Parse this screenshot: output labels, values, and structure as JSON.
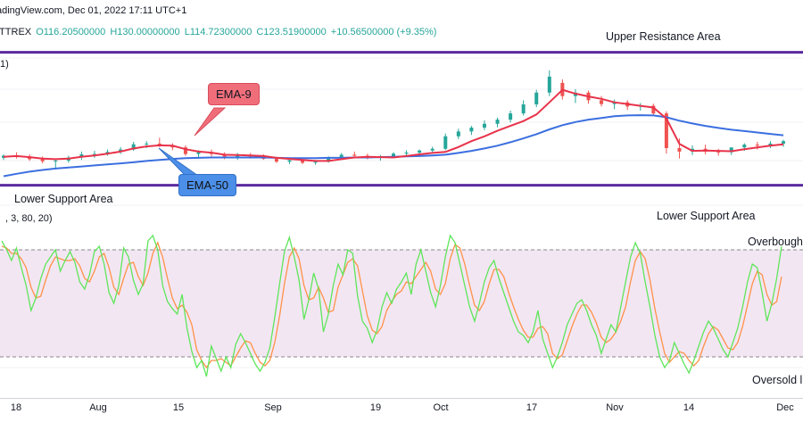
{
  "header": {
    "line1": "adingView.com, Dec 01, 2022 17:11 UTC+1",
    "exchange": "ITTREX",
    "open": "O116.20500000",
    "high": "H130.00000000",
    "low": "L114.72300000",
    "close": "C123.51900000",
    "change": "+10.56500000 (+9.35%)"
  },
  "indicator_main_label": "1)",
  "indicator_osc_label": ", 3, 80, 20)",
  "zones": {
    "upper_resistance": "Upper Resistance Area",
    "lower_support_left": "Lower Support Area",
    "lower_support_right": "Lower Support Area"
  },
  "callouts": {
    "ema9": "EMA-9",
    "ema50": "EMA-50"
  },
  "osc_labels": {
    "overbought": "Overbought",
    "oversold": "Oversold l"
  },
  "colors": {
    "up": "#26a69a",
    "down": "#ef5350",
    "ema9": "#e8334a",
    "ema50": "#3b6fe0",
    "zone_line": "#5b2a9e",
    "stoch_k": "#5ee65a",
    "stoch_d": "#ff9248",
    "band": "#f3e6f3"
  },
  "chart_data": [
    {
      "type": "candlestick",
      "x_ticks": [
        "18",
        "Aug",
        "15",
        "Sep",
        "19",
        "Oct",
        "17",
        "Nov",
        "14",
        "Dec"
      ],
      "ylim": [
        95,
        140
      ],
      "ema9": [
        105.1,
        105.3,
        105.0,
        104.6,
        104.4,
        104.6,
        105.1,
        105.5,
        106.0,
        106.6,
        107.5,
        108.1,
        108.4,
        108.3,
        107.3,
        106.6,
        106.3,
        105.7,
        105.6,
        105.5,
        105.3,
        104.8,
        104.5,
        104.2,
        103.9,
        103.9,
        104.4,
        104.9,
        105.1,
        105.0,
        104.9,
        105.3,
        105.8,
        106.2,
        106.5,
        107.9,
        109.6,
        111.0,
        112.6,
        114.0,
        115.4,
        117.3,
        120.8,
        124.4,
        123.3,
        122.5,
        121.8,
        120.8,
        120.3,
        119.8,
        119.3,
        116.1,
        108.8,
        106.8,
        106.9,
        106.8,
        106.7,
        107.3,
        107.8,
        108.3,
        108.7
      ],
      "ema50": [
        99.5,
        100.2,
        100.8,
        101.3,
        101.7,
        102.0,
        102.3,
        102.6,
        102.9,
        103.2,
        103.5,
        103.9,
        104.2,
        104.5,
        104.7,
        104.8,
        104.9,
        104.9,
        104.9,
        104.9,
        104.9,
        104.8,
        104.7,
        104.7,
        104.7,
        104.8,
        104.8,
        104.9,
        104.9,
        105.0,
        105.1,
        105.2,
        105.3,
        105.5,
        105.7,
        106.2,
        106.8,
        107.5,
        108.3,
        109.3,
        110.4,
        111.6,
        113.0,
        114.2,
        115.1,
        115.8,
        116.3,
        116.8,
        117.0,
        117.1,
        117.0,
        116.5,
        115.5,
        114.7,
        114.0,
        113.4,
        112.9,
        112.5,
        112.1,
        111.7,
        111.3
      ],
      "upper_resistance": 135.2,
      "lower_support": 96.9,
      "candles": [
        [
          104.8,
          105.8,
          104.2,
          105.4
        ],
        [
          105.4,
          106.4,
          104.6,
          105.0
        ],
        [
          105.0,
          105.8,
          103.9,
          104.4
        ],
        [
          104.4,
          105.2,
          103.2,
          103.8
        ],
        [
          103.8,
          104.6,
          101.5,
          104.0
        ],
        [
          104.0,
          105.4,
          103.4,
          104.9
        ],
        [
          104.9,
          106.6,
          104.2,
          105.8
        ],
        [
          105.8,
          106.8,
          104.8,
          105.9
        ],
        [
          105.9,
          107.2,
          105.4,
          106.5
        ],
        [
          106.5,
          107.9,
          105.9,
          107.2
        ],
        [
          107.2,
          109.4,
          106.8,
          108.7
        ],
        [
          108.7,
          109.6,
          107.6,
          108.9
        ],
        [
          108.9,
          110.6,
          107.9,
          108.5
        ],
        [
          108.5,
          109.0,
          107.0,
          107.8
        ],
        [
          107.8,
          108.4,
          105.4,
          105.9
        ],
        [
          105.9,
          107.0,
          105.0,
          106.4
        ],
        [
          106.4,
          107.2,
          105.2,
          105.9
        ],
        [
          105.9,
          106.4,
          104.4,
          104.7
        ],
        [
          104.7,
          106.2,
          104.2,
          105.6
        ],
        [
          105.6,
          106.2,
          104.6,
          105.2
        ],
        [
          105.2,
          105.8,
          104.2,
          104.5
        ],
        [
          104.5,
          105.0,
          103.3,
          103.7
        ],
        [
          103.7,
          104.8,
          103.0,
          104.1
        ],
        [
          104.1,
          104.6,
          103.0,
          103.4
        ],
        [
          103.4,
          104.2,
          102.8,
          103.7
        ],
        [
          103.7,
          105.2,
          103.4,
          104.9
        ],
        [
          104.9,
          106.2,
          104.3,
          105.7
        ],
        [
          105.7,
          106.6,
          104.8,
          105.4
        ],
        [
          105.4,
          106.0,
          104.4,
          104.8
        ],
        [
          104.8,
          105.6,
          104.0,
          105.2
        ],
        [
          105.2,
          106.4,
          104.8,
          106.0
        ],
        [
          106.0,
          107.0,
          105.4,
          106.3
        ],
        [
          106.3,
          107.2,
          105.6,
          106.9
        ],
        [
          106.9,
          108.0,
          106.0,
          107.4
        ],
        [
          107.4,
          111.8,
          107.0,
          111.0
        ],
        [
          111.0,
          113.2,
          110.2,
          112.4
        ],
        [
          112.4,
          114.0,
          111.4,
          113.5
        ],
        [
          113.5,
          115.6,
          112.8,
          114.6
        ],
        [
          114.6,
          116.4,
          113.6,
          115.8
        ],
        [
          115.8,
          118.4,
          115.0,
          117.6
        ],
        [
          117.6,
          121.4,
          117.0,
          120.2
        ],
        [
          120.2,
          124.4,
          119.4,
          123.6
        ],
        [
          123.6,
          130.0,
          122.6,
          128.2
        ],
        [
          126.4,
          127.4,
          121.6,
          122.6
        ],
        [
          122.6,
          124.6,
          120.6,
          123.6
        ],
        [
          123.6,
          124.2,
          120.4,
          121.4
        ],
        [
          121.4,
          122.6,
          119.6,
          120.3
        ],
        [
          120.3,
          121.6,
          118.8,
          120.8
        ],
        [
          120.8,
          121.4,
          118.6,
          119.6
        ],
        [
          119.6,
          120.6,
          118.4,
          119.8
        ],
        [
          119.8,
          120.4,
          117.0,
          117.6
        ],
        [
          117.6,
          118.2,
          106.0,
          107.6
        ],
        [
          107.6,
          110.4,
          104.6,
          106.6
        ],
        [
          106.6,
          108.4,
          105.6,
          107.4
        ],
        [
          107.4,
          108.6,
          105.8,
          106.6
        ],
        [
          106.6,
          107.4,
          105.4,
          106.4
        ],
        [
          106.4,
          107.6,
          105.6,
          107.8
        ],
        [
          107.8,
          109.0,
          106.8,
          108.6
        ],
        [
          108.6,
          109.4,
          107.2,
          108.3
        ],
        [
          108.3,
          109.6,
          107.6,
          108.9
        ],
        [
          108.9,
          110.0,
          108.0,
          109.6
        ]
      ]
    },
    {
      "type": "line",
      "name": "stochastic",
      "ylim": [
        0,
        100
      ],
      "overbought": 80,
      "oversold": 20,
      "k": [
        85,
        80,
        74,
        81,
        70,
        60,
        46,
        53,
        64,
        72,
        76,
        80,
        68,
        74,
        79,
        73,
        62,
        58,
        66,
        79,
        82,
        72,
        56,
        50,
        60,
        81,
        76,
        63,
        55,
        61,
        85,
        88,
        80,
        60,
        51,
        47,
        44,
        55,
        36,
        23,
        14,
        18,
        9,
        26,
        19,
        12,
        20,
        14,
        27,
        33,
        28,
        22,
        16,
        12,
        17,
        25,
        42,
        61,
        79,
        87,
        76,
        63,
        41,
        52,
        67,
        58,
        34,
        44,
        60,
        72,
        66,
        80,
        78,
        54,
        40,
        36,
        28,
        35,
        48,
        56,
        50,
        58,
        62,
        67,
        55,
        72,
        80,
        68,
        56,
        48,
        60,
        76,
        88,
        84,
        72,
        60,
        48,
        40,
        50,
        62,
        70,
        74,
        64,
        56,
        48,
        40,
        34,
        32,
        28,
        34,
        46,
        30,
        22,
        14,
        20,
        28,
        38,
        44,
        50,
        52,
        46,
        38,
        32,
        22,
        30,
        38,
        34,
        48,
        62,
        76,
        84,
        78,
        62,
        48,
        32,
        20,
        14,
        18,
        28,
        22,
        16,
        11,
        18,
        26,
        34,
        40,
        36,
        30,
        24,
        20,
        28,
        36,
        48,
        62,
        72,
        70,
        56,
        40,
        50,
        64,
        82
      ],
      "d": [
        82,
        81,
        78,
        78,
        75,
        70,
        59,
        53,
        54,
        63,
        71,
        76,
        75,
        74,
        74,
        75,
        71,
        64,
        62,
        68,
        76,
        78,
        70,
        59,
        55,
        64,
        72,
        73,
        65,
        60,
        67,
        78,
        84,
        76,
        64,
        53,
        47,
        49,
        45,
        38,
        24,
        18,
        14,
        18,
        18,
        19,
        17,
        15,
        20,
        25,
        29,
        28,
        22,
        17,
        15,
        18,
        28,
        43,
        61,
        76,
        81,
        75,
        60,
        52,
        53,
        59,
        53,
        45,
        46,
        59,
        66,
        73,
        75,
        71,
        57,
        43,
        35,
        33,
        37,
        46,
        51,
        55,
        57,
        62,
        61,
        65,
        69,
        73,
        68,
        58,
        55,
        61,
        75,
        83,
        81,
        72,
        60,
        49,
        46,
        51,
        61,
        69,
        69,
        65,
        56,
        48,
        41,
        35,
        31,
        31,
        36,
        37,
        33,
        22,
        19,
        21,
        29,
        37,
        44,
        49,
        49,
        45,
        39,
        31,
        28,
        30,
        34,
        40,
        48,
        62,
        74,
        79,
        75,
        63,
        47,
        34,
        22,
        17,
        20,
        23,
        22,
        18,
        15,
        18,
        26,
        33,
        37,
        35,
        30,
        25,
        24,
        28,
        37,
        49,
        61,
        68,
        66,
        55,
        49,
        51,
        65
      ]
    }
  ]
}
